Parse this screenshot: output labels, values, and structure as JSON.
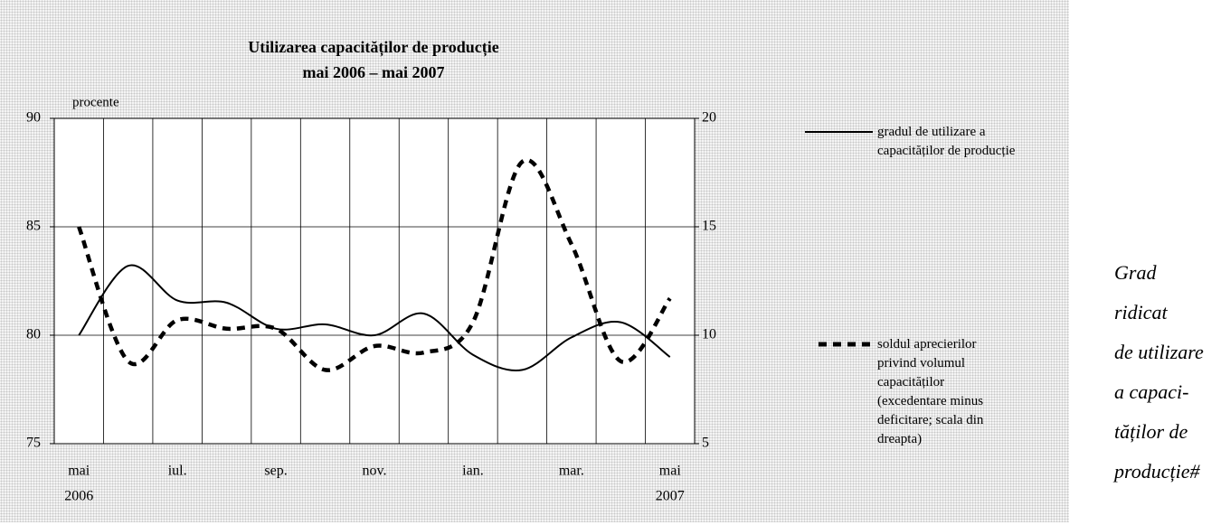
{
  "chart_data": {
    "type": "line",
    "title": "Utilizarea capacităților de producție",
    "subtitle": "mai 2006 – mai 2007",
    "y_label": "procente",
    "categories": [
      "mai",
      null,
      "iul.",
      null,
      "sep.",
      null,
      "nov.",
      null,
      "ian.",
      null,
      "mar.",
      null,
      "mai"
    ],
    "category_years": [
      "2006",
      null,
      null,
      null,
      null,
      null,
      null,
      null,
      null,
      null,
      null,
      null,
      "2007"
    ],
    "ylim": [
      75,
      90
    ],
    "yticks": [
      75,
      80,
      85,
      90
    ],
    "y2lim": [
      5,
      20
    ],
    "y2ticks": [
      5,
      10,
      15,
      20
    ],
    "grid": true,
    "series": [
      {
        "name": "gradul de utilizare a capacităților de producție",
        "color": "#000000",
        "style": "solid",
        "values": [
          80,
          83.2,
          81.6,
          81.5,
          80.3,
          80.5,
          80,
          81,
          79.1,
          78.4,
          79.9,
          80.6,
          79
        ]
      },
      {
        "name": "soldul aprecierilor privind volumul capacităților (excedentare minus deficitare; scala din dreapta)",
        "color": "#000000",
        "style": "dashed",
        "axis": "y2",
        "values": [
          15,
          8.8,
          10.7,
          10.3,
          10.3,
          8.4,
          9.5,
          9.2,
          10.6,
          18,
          14.2,
          8.8,
          11.7
        ]
      }
    ]
  },
  "side_note": [
    "Grad",
    "ridicat",
    "de utilizare",
    "a capaci-",
    "tăților de",
    "producție#"
  ]
}
